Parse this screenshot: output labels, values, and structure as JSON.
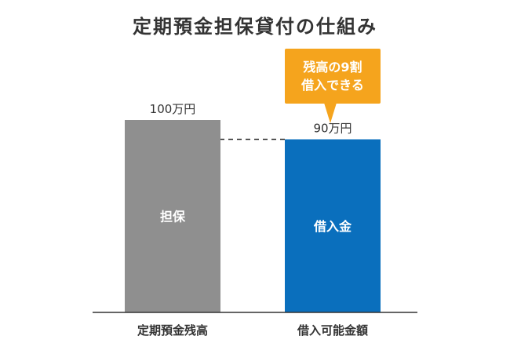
{
  "title": "定期預金担保貸付の仕組み",
  "callout": {
    "line1": "残高の9割",
    "line2": "借入できる"
  },
  "colors": {
    "collateral": "#8f8f8f",
    "loan": "#0a6fbd",
    "callout": "#f5a41d",
    "text": "#333333"
  },
  "chart_data": {
    "type": "bar",
    "categories": [
      "定期預金残高",
      "借入可能金額"
    ],
    "values": [
      100,
      90
    ],
    "data_labels": [
      "100万円",
      "90万円"
    ],
    "bar_labels": [
      "担保",
      "借入金"
    ],
    "reference_line": {
      "value": 90,
      "style": "dashed"
    },
    "ylim": [
      0,
      100
    ],
    "grid": false,
    "legend": "none"
  }
}
